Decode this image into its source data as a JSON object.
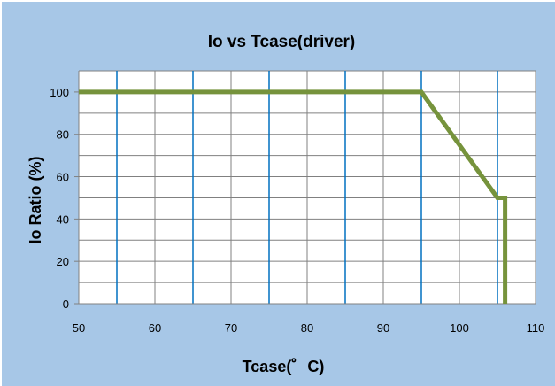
{
  "chart_data": {
    "type": "line",
    "title": "Io  vs  Tcase(driver)",
    "xlabel": "Tcase(゜C)",
    "ylabel": "Io Ratio (%)",
    "xlim": [
      50,
      110
    ],
    "ylim": [
      0,
      110
    ],
    "x_ticks": [
      50,
      60,
      70,
      80,
      90,
      100,
      110
    ],
    "y_ticks": [
      0,
      20,
      40,
      60,
      80,
      100
    ],
    "x_tick_labels": [
      "50",
      "60",
      "70",
      "80",
      "90",
      "100",
      "110"
    ],
    "y_tick_labels": [
      "0",
      "20",
      "40",
      "60",
      "80",
      "100"
    ],
    "x_minor_gridlines": [
      55,
      65,
      75,
      85,
      95,
      105
    ],
    "y_minor_gridlines": [
      10,
      30,
      50,
      70,
      90,
      110
    ],
    "grid": true,
    "legend": "none",
    "series": [
      {
        "x": [
          50,
          95,
          105,
          106,
          106
        ],
        "y": [
          100,
          100,
          50,
          50,
          0
        ],
        "color": "#76933c"
      }
    ]
  },
  "colors": {
    "background": "#a7c7e7",
    "plot_area": "#ffffff",
    "major_gridline": "#0070c0",
    "minor_gridline": "#808080",
    "axis": "#808080"
  }
}
